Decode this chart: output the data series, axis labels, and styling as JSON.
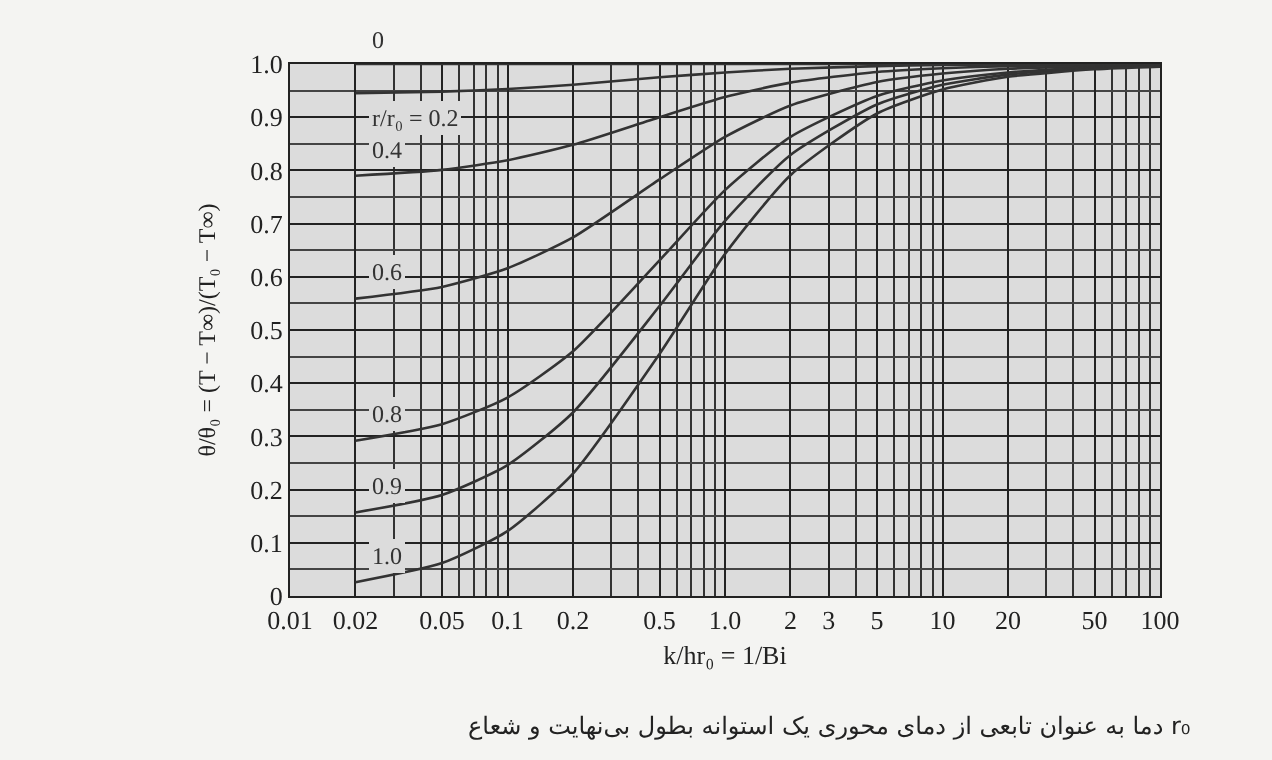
{
  "chart_data": {
    "type": "line",
    "xlabel": "k/hr₀ = 1/Bi",
    "ylabel": "θ/θ₀ = (T − T∞)/(T₀ − T∞)",
    "annotations": [
      "دما به عنوان تابعی از دمای محوری یک استوانه بطول بی‌نهایت و شعاع r₀"
    ],
    "log": "x",
    "grid": true,
    "legend": false,
    "marker": "none",
    "line_style": "solid",
    "xlim": [
      0.01,
      100
    ],
    "ylim": [
      0,
      1
    ],
    "xticks": [
      0.01,
      0.02,
      0.05,
      0.1,
      0.2,
      0.5,
      {
        "value": 1,
        "label": "1.0"
      },
      2,
      3,
      5,
      10,
      20,
      50,
      100
    ],
    "yticks": [
      0,
      0.1,
      0.2,
      0.3,
      0.4,
      0.5,
      0.6,
      0.7,
      0.8,
      0.9,
      {
        "value": 1,
        "label": "1.0"
      }
    ],
    "x": [
      0.02,
      0.05,
      0.1,
      0.2,
      0.5,
      1,
      2,
      5,
      10,
      20,
      50,
      100
    ],
    "series": [
      {
        "name": "0",
        "color": "#333333",
        "values": [
          1,
          1,
          1,
          1,
          1,
          1,
          1,
          1,
          1,
          1,
          1,
          1
        ]
      },
      {
        "name": "r/r₀ = 0.2",
        "color": "#333333",
        "values": [
          0.945,
          0.948,
          0.953,
          0.961,
          0.975,
          0.984,
          0.991,
          0.996,
          0.998,
          0.999,
          1,
          1
        ]
      },
      {
        "name": "0.4",
        "color": "#333333",
        "values": [
          0.79,
          0.801,
          0.819,
          0.848,
          0.9,
          0.938,
          0.965,
          0.985,
          0.992,
          0.996,
          0.998,
          1
        ]
      },
      {
        "name": "0.6",
        "color": "#333333",
        "values": [
          0.559,
          0.581,
          0.616,
          0.674,
          0.783,
          0.863,
          0.922,
          0.966,
          0.982,
          0.991,
          0.996,
          0.998
        ]
      },
      {
        "name": "0.8",
        "color": "#333333",
        "values": [
          0.292,
          0.323,
          0.373,
          0.46,
          0.631,
          0.763,
          0.863,
          0.94,
          0.969,
          0.984,
          0.994,
          0.997
        ]
      },
      {
        "name": "0.9",
        "color": "#333333",
        "values": [
          0.157,
          0.19,
          0.246,
          0.345,
          0.545,
          0.705,
          0.829,
          0.924,
          0.961,
          0.98,
          0.992,
          0.996
        ]
      },
      {
        "name": "1.0",
        "color": "#333333",
        "values": [
          0.026,
          0.062,
          0.122,
          0.23,
          0.455,
          0.643,
          0.791,
          0.907,
          0.952,
          0.976,
          0.99,
          0.995
        ]
      }
    ]
  }
}
